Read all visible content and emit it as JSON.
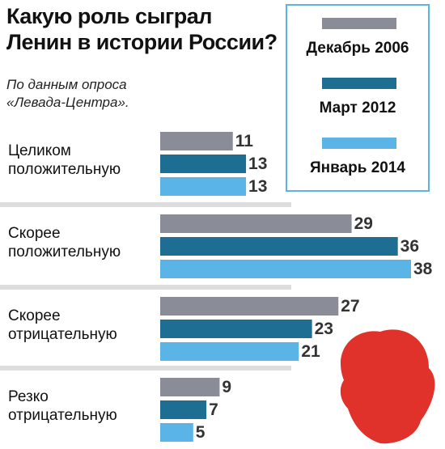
{
  "chart_data": {
    "type": "bar",
    "orientation": "horizontal",
    "title": "Какую роль сыграл Ленин в истории России?",
    "subtitle": "По данным опроса «Левада-Центра».",
    "categories": [
      "Целиком положительную",
      "Скорее положительную",
      "Скорее отрицательную",
      "Резко отрицательную"
    ],
    "series": [
      {
        "name": "Декабрь 2006",
        "color": "#8a8c98",
        "values": [
          11,
          29,
          27,
          9
        ]
      },
      {
        "name": "Март 2012",
        "color": "#1d6e92",
        "values": [
          13,
          36,
          23,
          7
        ]
      },
      {
        "name": "Январь 2014",
        "color": "#5ab4e6",
        "values": [
          13,
          38,
          21,
          5
        ]
      }
    ]
  }
}
